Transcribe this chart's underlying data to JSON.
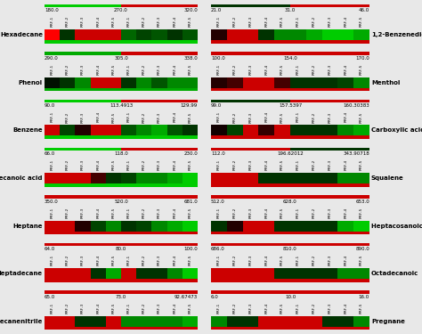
{
  "rows": [
    {
      "left_label": "Hexadecane",
      "right_label": "1,2-Benzenediol",
      "left_axis_labels": [
        "180.0",
        "270.0",
        "320.0"
      ],
      "right_axis_labels": [
        "21.0",
        "31.0",
        "46.0"
      ],
      "left_colors": [
        "#ff0000",
        "#003300",
        "#cc0000",
        "#cc0000",
        "#cc0000",
        "#006600",
        "#004400",
        "#005500",
        "#003300",
        "#005500"
      ],
      "right_colors": [
        "#220000",
        "#cc0000",
        "#cc0000",
        "#003300",
        "#008800",
        "#008800",
        "#00aa00",
        "#00cc00",
        "#00cc00",
        "#00aa00"
      ],
      "left_top_bar": [
        "#00cc00",
        "#cc0000"
      ],
      "right_top_bar": [
        "#003300",
        "#cc0000"
      ],
      "left_bot_bar": "#00cc00",
      "right_bot_bar": "#cc0000"
    },
    {
      "left_label": "Phenol",
      "right_label": "Menthol",
      "left_axis_labels": [
        "290.0",
        "305.0",
        "338.0"
      ],
      "right_axis_labels": [
        "100.0",
        "154.0",
        "170.0"
      ],
      "left_colors": [
        "#001100",
        "#003300",
        "#008800",
        "#cc0000",
        "#cc0000",
        "#003300",
        "#008800",
        "#005500",
        "#008800",
        "#008800"
      ],
      "right_colors": [
        "#220000",
        "#440000",
        "#cc0000",
        "#cc0000",
        "#440000",
        "#003300",
        "#003300",
        "#003300",
        "#004400",
        "#008800"
      ],
      "left_top_bar": [
        "#00aa00",
        "#cc0000"
      ],
      "right_top_bar": [
        "#cc0000",
        "#cc0000"
      ],
      "left_bot_bar": "#00aa00",
      "right_bot_bar": "#cc0000"
    },
    {
      "left_label": "Benzene",
      "right_label": "Carboxylic acid",
      "left_axis_labels": [
        "90.0",
        "113.4913",
        "129.99"
      ],
      "right_axis_labels": [
        "99.0",
        "157.5397",
        "160.30383"
      ],
      "left_colors": [
        "#cc0000",
        "#004400",
        "#220000",
        "#cc0000",
        "#cc0000",
        "#005500",
        "#008800",
        "#00aa00",
        "#005500",
        "#003300"
      ],
      "right_colors": [
        "#110000",
        "#004400",
        "#cc0000",
        "#330000",
        "#cc0000",
        "#003300",
        "#003300",
        "#003300",
        "#008800",
        "#00aa00"
      ],
      "left_top_bar": [
        "#00cc00",
        "#cc0000"
      ],
      "right_top_bar": [
        "#003300",
        "#cc0000"
      ],
      "left_bot_bar": "#00cc00",
      "right_bot_bar": "#cc0000"
    },
    {
      "left_label": "Decanoic acid",
      "right_label": "Squalene",
      "left_axis_labels": [
        "66.0",
        "118.0",
        "230.0"
      ],
      "right_axis_labels": [
        "112.0",
        "196.62012",
        "343.90718"
      ],
      "left_colors": [
        "#cc0000",
        "#cc0000",
        "#cc0000",
        "#440000",
        "#003300",
        "#004400",
        "#008800",
        "#008800",
        "#00aa00",
        "#00cc00"
      ],
      "right_colors": [
        "#cc0000",
        "#cc0000",
        "#cc0000",
        "#003300",
        "#003300",
        "#003300",
        "#003300",
        "#003300",
        "#008800",
        "#008800"
      ],
      "left_top_bar": [
        "#00cc00",
        "#cc0000"
      ],
      "right_top_bar": [
        "#cc0000",
        "#003300"
      ],
      "left_bot_bar": "#00cc00",
      "right_bot_bar": "#cc0000"
    },
    {
      "left_label": "Heptane",
      "right_label": "Heptacosanoic acid",
      "left_axis_labels": [
        "350.0",
        "520.0",
        "681.0"
      ],
      "right_axis_labels": [
        "512.0",
        "628.0",
        "653.0"
      ],
      "left_colors": [
        "#cc0000",
        "#cc0000",
        "#220000",
        "#004400",
        "#008800",
        "#003300",
        "#004400",
        "#008800",
        "#00aa00",
        "#00cc00"
      ],
      "right_colors": [
        "#003300",
        "#220000",
        "#cc0000",
        "#cc0000",
        "#003300",
        "#003300",
        "#003300",
        "#003300",
        "#00aa00",
        "#00cc00"
      ],
      "left_top_bar": [
        "#cc0000",
        "#cc0000"
      ],
      "right_top_bar": [
        "#cc0000",
        "#cc0000"
      ],
      "left_bot_bar": "#cc0000",
      "right_bot_bar": "#cc0000"
    },
    {
      "left_label": "Heptadecane",
      "right_label": "Octadecanoic",
      "left_axis_labels": [
        "64.0",
        "80.0",
        "100.0"
      ],
      "right_axis_labels": [
        "686.0",
        "810.0",
        "890.0"
      ],
      "left_colors": [
        "#cc0000",
        "#cc0000",
        "#cc0000",
        "#003300",
        "#00aa00",
        "#cc0000",
        "#003300",
        "#003300",
        "#008800",
        "#00cc00"
      ],
      "right_colors": [
        "#cc0000",
        "#cc0000",
        "#cc0000",
        "#cc0000",
        "#003300",
        "#003300",
        "#003300",
        "#003300",
        "#008800",
        "#008800"
      ],
      "left_top_bar": [
        "#cc0000",
        "#cc0000"
      ],
      "right_top_bar": [
        "#cc0000",
        "#cc0000"
      ],
      "left_bot_bar": "#cc0000",
      "right_bot_bar": "#cc0000"
    },
    {
      "left_label": "Heptadecanenitrile",
      "right_label": "Pregnane",
      "left_axis_labels": [
        "65.0",
        "73.0",
        "92.67473"
      ],
      "right_axis_labels": [
        "6.0",
        "10.0",
        "16.0"
      ],
      "left_colors": [
        "#cc0000",
        "#cc0000",
        "#003300",
        "#003300",
        "#cc0000",
        "#008800",
        "#008800",
        "#008800",
        "#008800",
        "#00aa00"
      ],
      "right_colors": [
        "#008800",
        "#003300",
        "#003300",
        "#cc0000",
        "#cc0000",
        "#cc0000",
        "#cc0000",
        "#003300",
        "#003300",
        "#008800"
      ],
      "left_top_bar": [
        "#cc0000",
        "#cc0000"
      ],
      "right_top_bar": [
        "#cc0000",
        "#cc0000"
      ],
      "left_bot_bar": "#cc0000",
      "right_bot_bar": "#cc0000"
    }
  ],
  "bg_color": "#e8e8e8",
  "n_cells": 10,
  "tick_labels": [
    "RRF-1",
    "RRF-2",
    "RRF-3",
    "RRF-4",
    "RRF-5",
    "RRF-1",
    "RRF-2",
    "RRF-3",
    "RRF-4",
    "RRF-5"
  ]
}
